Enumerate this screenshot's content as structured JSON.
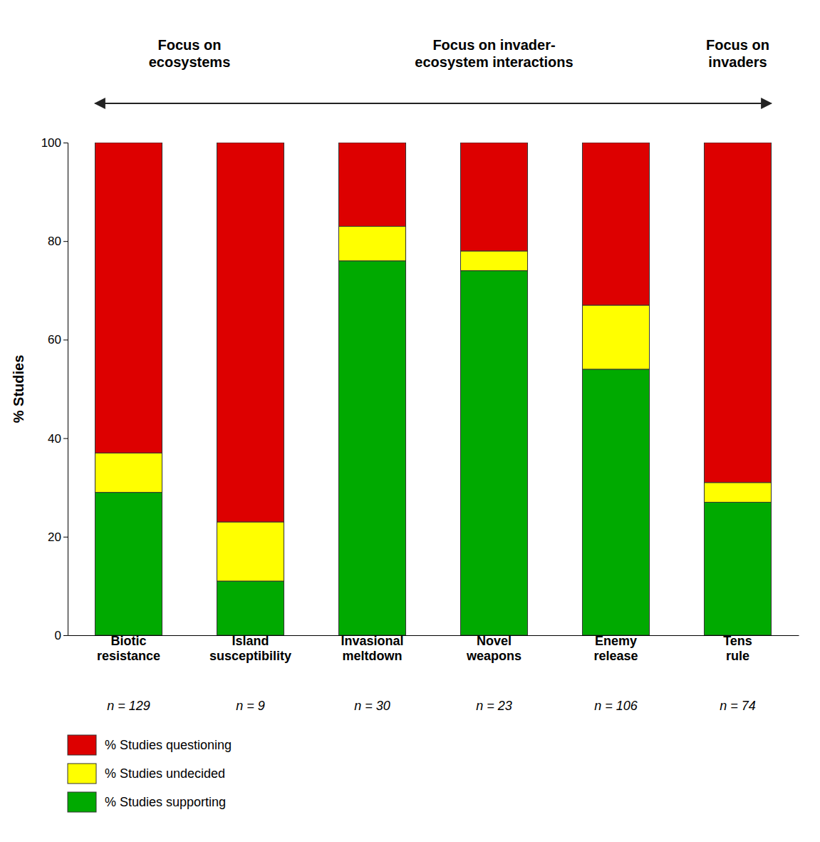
{
  "chart_data": {
    "type": "bar",
    "stacked": true,
    "categories": [
      "Biotic\nresistance",
      "Island\nsusceptibility",
      "Invasional\nmeltdown",
      "Novel\nweapons",
      "Enemy\nrelease",
      "Tens\nrule"
    ],
    "category_notes": [
      "n = 129",
      "n = 9",
      "n = 30",
      "n = 23",
      "n = 106",
      "n = 74"
    ],
    "series": [
      {
        "name": "% Studies supporting",
        "color": "#00aa00",
        "values": [
          29,
          11,
          76,
          74,
          54,
          27
        ]
      },
      {
        "name": "% Studies undecided",
        "color": "#ffff00",
        "values": [
          8,
          12,
          7,
          4,
          13,
          4
        ]
      },
      {
        "name": "% Studies questioning",
        "color": "#dd0000",
        "values": [
          63,
          77,
          17,
          22,
          33,
          69
        ]
      }
    ],
    "y_label": "% Studies",
    "ylim": [
      0,
      100
    ],
    "yticks": [
      0,
      20,
      40,
      60,
      80,
      100
    ],
    "annotations": [
      "Focus on\necosystems",
      "Focus on invader-\necosystem interactions",
      "Focus on\ninvaders"
    ],
    "legend": "lower left",
    "grid": false
  }
}
